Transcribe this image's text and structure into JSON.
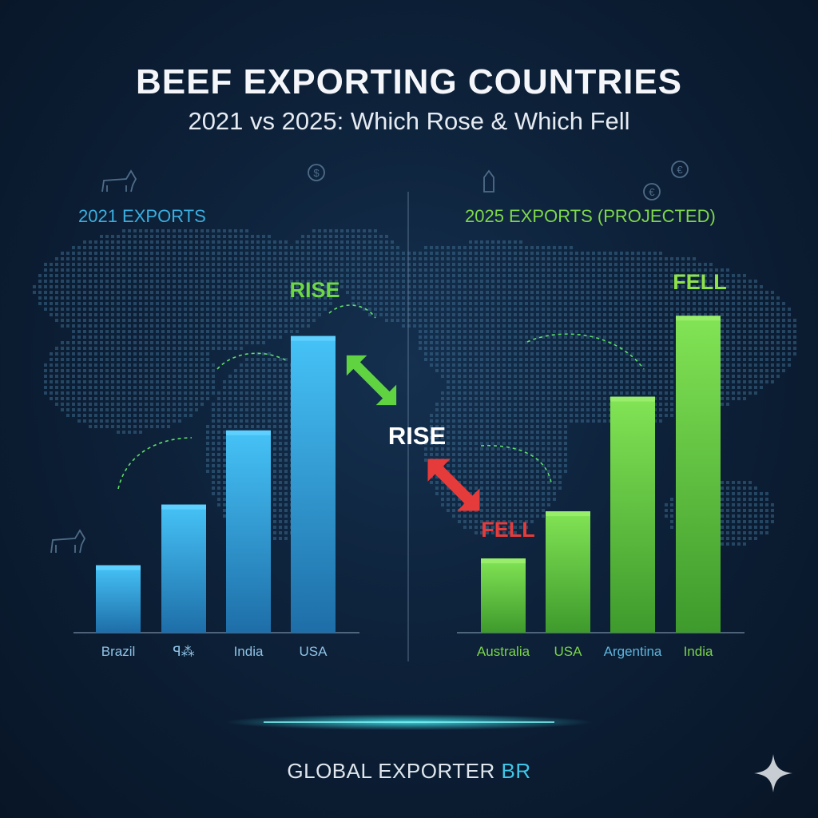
{
  "header": {
    "title": "BEEF EXPORTING COUNTRIES",
    "subtitle": "2021 vs 2025: Which Rose & Which Fell"
  },
  "footer": {
    "brand_main": "GLOBAL EXPORTER ",
    "brand_accent": "BR"
  },
  "colors": {
    "left_series": "#3ab4ef",
    "right_series": "#6fd845",
    "rise": "#6fd845",
    "fell": "#e83a3a",
    "fell_text_right": "#8fe34a"
  },
  "icons": [
    "cow-icon",
    "dollar-coin-icon",
    "euro-coin-icon",
    "milk-carton-icon",
    "sparkle-icon"
  ],
  "chart_data": [
    {
      "type": "bar",
      "title": "2021 EXPORTS",
      "categories": [
        "Brazil",
        "ꟼ⁂",
        "India",
        "USA"
      ],
      "values": [
        1.0,
        1.9,
        3.0,
        4.4
      ],
      "ylim": [
        0,
        5
      ],
      "annotation": "RISE",
      "grid": false
    },
    {
      "type": "bar",
      "title": "2025 EXPORTS (PROJECTED)",
      "categories": [
        "Australia",
        "USA",
        "Argentina",
        "India"
      ],
      "values": [
        1.1,
        1.8,
        3.5,
        4.7
      ],
      "ylim": [
        0,
        5
      ],
      "annotation": "FELL",
      "grid": false
    }
  ],
  "middle_labels": {
    "rise": "RISE",
    "fell": "FELL"
  }
}
